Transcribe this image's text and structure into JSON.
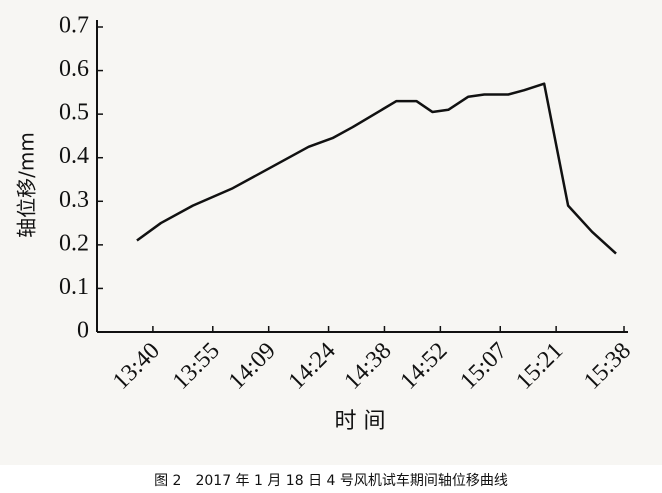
{
  "chart_data": {
    "type": "line",
    "y_label": "轴位移/mm",
    "x_label": "时 间",
    "caption": "图 2　2017 年 1 月 18 日 4 号风机试车期间轴位移曲线",
    "x": [
      "13:36",
      "13:42",
      "13:50",
      "14:00",
      "14:10",
      "14:19",
      "14:25",
      "14:30",
      "14:41",
      "14:46",
      "14:50",
      "14:54",
      "14:59",
      "15:03",
      "15:09",
      "15:13",
      "15:18",
      "15:24",
      "15:30",
      "15:36"
    ],
    "series": [
      {
        "color": "#111111",
        "values": [
          0.21,
          0.25,
          0.29,
          0.33,
          0.38,
          0.425,
          0.445,
          0.47,
          0.53,
          0.53,
          0.505,
          0.51,
          0.54,
          0.545,
          0.545,
          0.555,
          0.57,
          0.29,
          0.23,
          0.18
        ]
      }
    ],
    "xlim": [
      "13:26",
      "15:39"
    ],
    "xticks": [
      "13:40",
      "13:55",
      "14:09",
      "14:24",
      "14:38",
      "14:52",
      "15:07",
      "15:21",
      "15:38"
    ],
    "ylim": [
      0,
      0.7
    ],
    "yticks": [
      0,
      0.1,
      0.2,
      0.3,
      0.4,
      0.5,
      0.6,
      0.7
    ]
  }
}
